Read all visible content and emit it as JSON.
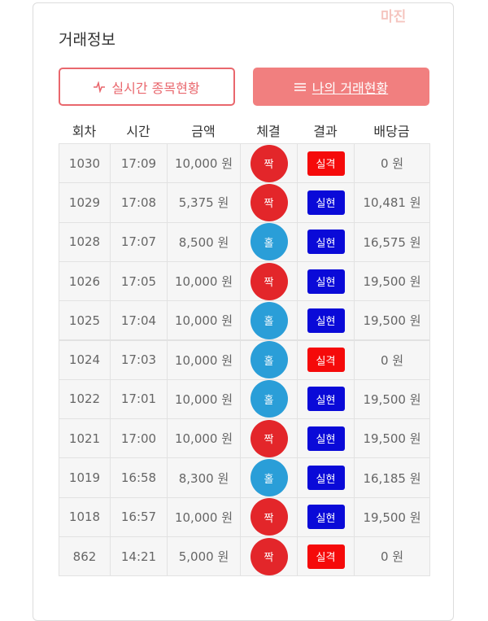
{
  "logo": "마진",
  "title": "거래정보",
  "buttons": [
    "실시간 종목현황",
    "나의 거래현황"
  ],
  "table": {
    "headers": [
      "회차",
      "시간",
      "금액",
      "체결",
      "결과",
      "배당금"
    ],
    "rows": [
      [
        "1030",
        "17:09",
        "10,000 원",
        "짝",
        "실격",
        "0 원"
      ],
      [
        "1029",
        "17:08",
        "5,375 원",
        "짝",
        "실현",
        "10,481 원"
      ],
      [
        "1028",
        "17:07",
        "8,500 원",
        "홀",
        "실현",
        "16,575 원"
      ],
      [
        "1026",
        "17:05",
        "10,000 원",
        "짝",
        "실현",
        "19,500 원"
      ],
      [
        "1025",
        "17:04",
        "10,000 원",
        "홀",
        "실현",
        "19,500 원"
      ],
      [
        "1024",
        "17:03",
        "10,000 원",
        "홀",
        "실격",
        "0 원"
      ],
      [
        "1022",
        "17:01",
        "10,000 원",
        "홀",
        "실현",
        "19,500 원"
      ],
      [
        "1021",
        "17:00",
        "10,000 원",
        "짝",
        "실현",
        "19,500 원"
      ],
      [
        "1019",
        "16:58",
        "8,300 원",
        "홀",
        "실현",
        "16,185 원"
      ],
      [
        "1018",
        "16:57",
        "10,000 원",
        "짝",
        "실현",
        "19,500 원"
      ],
      [
        "862",
        "14:21",
        "5,000 원",
        "짝",
        "실격",
        "0 원"
      ]
    ]
  },
  "colors": {
    "짝": "#e3262a",
    "홀": "#2a9ed8",
    "실격": "#f50a0a",
    "실현": "#0a0ad8"
  }
}
